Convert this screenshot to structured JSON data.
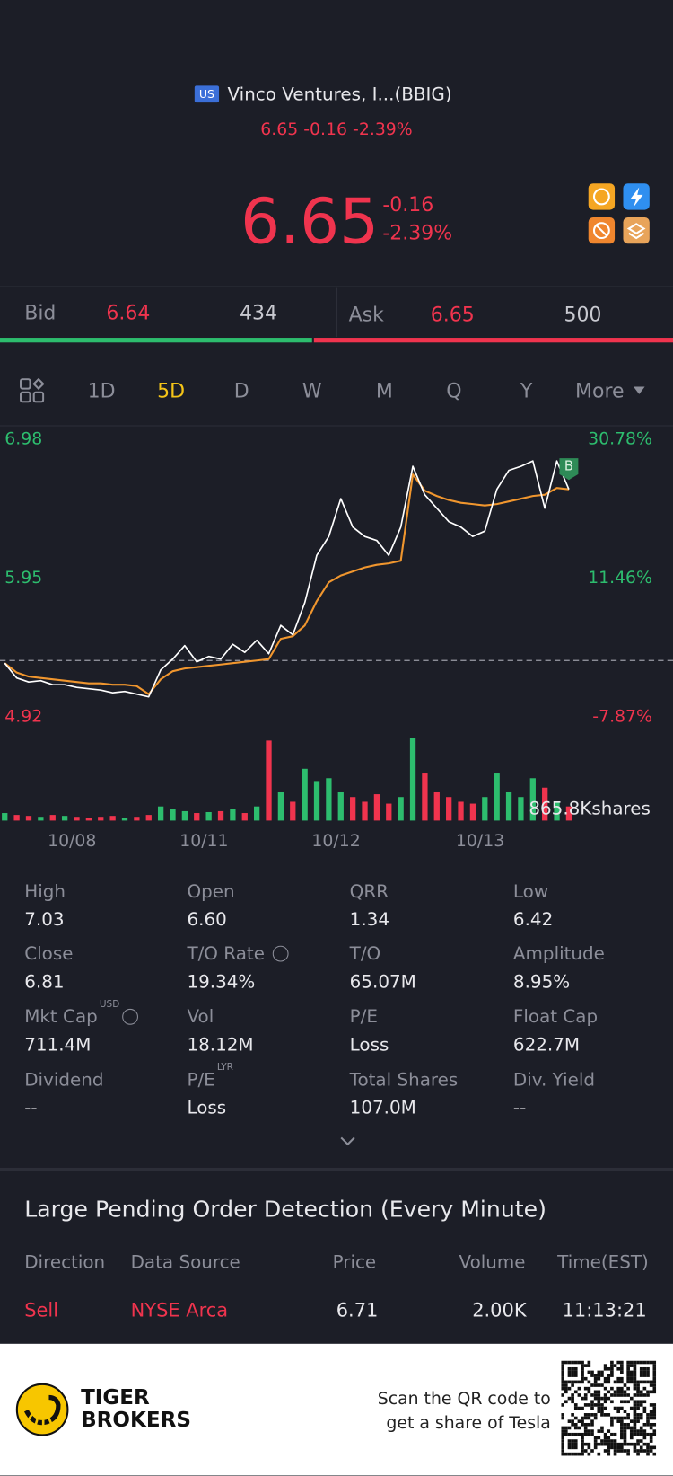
{
  "header": {
    "flag": "US",
    "name": "Vinco Ventures, I...(BBIG)",
    "quote": "6.65 -0.16 -2.39%"
  },
  "price": {
    "last": "6.65",
    "change": "-0.16",
    "change_pct": "-2.39%"
  },
  "bidask": {
    "bid_label": "Bid",
    "bid": "6.64",
    "bid_size": "434",
    "ask_label": "Ask",
    "ask": "6.65",
    "ask_size": "500",
    "bid_color": "#2dbd6e",
    "ask_color": "#f0344e"
  },
  "tabs": {
    "items": [
      "1D",
      "5D",
      "D",
      "W",
      "M",
      "Q",
      "Y",
      "More"
    ],
    "active": 1
  },
  "chart_data": [
    {
      "type": "line",
      "categories": [
        null,
        null,
        null,
        null,
        null,
        null,
        "10/08",
        null,
        null,
        null,
        null,
        null,
        null,
        null,
        null,
        null,
        null,
        "10/11",
        null,
        null,
        null,
        null,
        null,
        null,
        null,
        null,
        null,
        null,
        "10/12",
        null,
        null,
        null,
        null,
        null,
        null,
        null,
        null,
        null,
        null,
        null,
        "10/13",
        null,
        null,
        null,
        null,
        null,
        null,
        null
      ],
      "series": [
        {
          "color": "#ffffff",
          "values": [
            5.32,
            5.21,
            5.18,
            5.19,
            5.16,
            5.16,
            5.14,
            5.13,
            5.12,
            5.1,
            5.11,
            5.09,
            5.07,
            5.27,
            5.35,
            5.45,
            5.33,
            5.37,
            5.35,
            5.46,
            5.4,
            5.49,
            5.39,
            5.6,
            5.53,
            5.77,
            6.12,
            6.26,
            6.54,
            6.33,
            6.26,
            6.23,
            6.12,
            6.33,
            6.78,
            6.57,
            6.47,
            6.37,
            6.33,
            6.26,
            6.3,
            6.61,
            6.75,
            6.78,
            6.82,
            6.47,
            6.82,
            6.61
          ]
        },
        {
          "color": "#f0962e",
          "values": [
            5.32,
            5.25,
            5.22,
            5.21,
            5.2,
            5.19,
            5.18,
            5.17,
            5.17,
            5.16,
            5.16,
            5.15,
            5.09,
            5.2,
            5.26,
            5.28,
            5.29,
            5.3,
            5.31,
            5.32,
            5.33,
            5.34,
            5.35,
            5.5,
            5.52,
            5.6,
            5.78,
            5.92,
            5.97,
            6.0,
            6.03,
            6.05,
            6.06,
            6.08,
            6.72,
            6.6,
            6.56,
            6.53,
            6.51,
            6.5,
            6.49,
            6.5,
            6.52,
            6.54,
            6.56,
            6.57,
            6.62,
            6.61
          ]
        }
      ],
      "ylim": [
        4.92,
        6.98
      ],
      "yticks": [
        6.98,
        5.95,
        4.92
      ],
      "y2lim": [
        -7.87,
        30.78
      ],
      "y2ticks": [
        {
          "value": 30.78,
          "label": "30.78%"
        },
        {
          "value": 11.46,
          "label": "11.46%"
        },
        {
          "value": -7.87,
          "label": "-7.87%"
        }
      ],
      "up_color": "#2dbd6e",
      "down_color": "#f0344e",
      "annotation": "B"
    },
    {
      "type": "bar",
      "values": [
        80,
        60,
        50,
        40,
        60,
        50,
        40,
        30,
        40,
        50,
        30,
        40,
        60,
        150,
        120,
        100,
        80,
        90,
        100,
        120,
        80,
        150,
        850,
        300,
        200,
        550,
        420,
        450,
        300,
        250,
        200,
        280,
        180,
        250,
        880,
        500,
        300,
        250,
        200,
        180,
        250,
        500,
        300,
        250,
        450,
        350,
        200,
        150
      ],
      "ylim": [
        0,
        900
      ],
      "label": "865.8Kshares"
    }
  ],
  "stats": {
    "rows": [
      [
        {
          "label": "High",
          "value": "7.03"
        },
        {
          "label": "Open",
          "value": "6.60"
        },
        {
          "label": "QRR",
          "value": "1.34"
        },
        {
          "label": "Low",
          "value": "6.42"
        }
      ],
      [
        {
          "label": "Close",
          "value": "6.81"
        },
        {
          "label": "T/O Rate",
          "value": "19.34%",
          "info": true
        },
        {
          "label": "T/O",
          "value": "65.07M"
        },
        {
          "label": "Amplitude",
          "value": "8.95%"
        }
      ],
      [
        {
          "label": "Mkt Cap",
          "sup": "USD",
          "value": "711.4M",
          "info": true
        },
        {
          "label": "Vol",
          "value": "18.12M"
        },
        {
          "label": "P/E",
          "value": "Loss"
        },
        {
          "label": "Float Cap",
          "value": "622.7M"
        }
      ],
      [
        {
          "label": "Dividend",
          "value": "--"
        },
        {
          "label": "P/E",
          "sup": "LYR",
          "value": "Loss"
        },
        {
          "label": "Total Shares",
          "value": "107.0M"
        },
        {
          "label": "Div. Yield",
          "value": "--"
        }
      ]
    ]
  },
  "orders": {
    "title": "Large Pending Order Detection (Every Minute)",
    "columns": [
      "Direction",
      "Data Source",
      "Price",
      "Volume",
      "Time(EST)"
    ],
    "rows": [
      [
        "Sell",
        "NYSE Arca",
        "6.71",
        "2.00K",
        "11:13:21"
      ]
    ]
  },
  "footer": {
    "brand_1": "TIGER",
    "brand_2": "BROKERS",
    "line_1": "Scan the QR code to",
    "line_2": "get a share of Tesla"
  }
}
